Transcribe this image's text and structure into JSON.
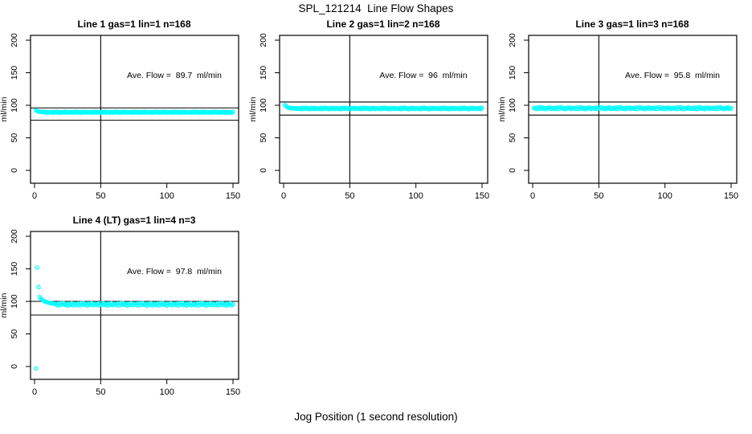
{
  "chart_data": {
    "type": "scatter",
    "title": "SPL_121214  Line Flow Shapes",
    "xlabel": "Jog Position (1 second resolution)",
    "ylabel": "ml/min",
    "xlim": [
      -6,
      156
    ],
    "ylim": [
      -12,
      212
    ],
    "xticks": [
      0,
      50,
      100,
      150
    ],
    "yticks": [
      0,
      50,
      100,
      150,
      200
    ],
    "grid": false,
    "vline_x": 50,
    "marker": {
      "shape": "open-circle",
      "color": "#00FFFF",
      "radius": 2.1,
      "stroke_width": 1.3
    },
    "line_color": "#000000",
    "plots": [
      {
        "title": "Line 1 gas=1 lin=1 n=168",
        "ave_flow": 89.7,
        "ave_flow_label": "Ave. Flow =  89.7  ml/min",
        "n": 168,
        "hlines": [
          96,
          77
        ],
        "extra_points": [],
        "series": {
          "x0": 1,
          "dx": 1,
          "y": [
            92.3,
            91.2,
            90.4,
            90.0,
            89.8,
            89.6,
            90.1,
            88.9,
            89.7,
            88.6,
            89.3,
            88.7,
            89.7,
            88.4,
            90.0,
            89.1,
            90.2,
            88.8,
            89.5,
            88.3,
            89.8,
            89.0,
            90.1,
            88.6,
            89.6,
            89.3,
            88.7,
            89.7,
            88.4,
            90.0,
            89.1,
            90.2,
            88.8,
            89.5,
            88.3,
            89.8,
            89.0,
            90.1,
            88.6,
            89.6,
            89.3,
            88.7,
            89.7,
            88.4,
            90.0,
            89.1,
            90.2,
            88.8,
            89.5,
            88.3,
            89.8,
            89.0,
            90.1,
            88.6,
            89.6,
            89.3,
            88.7,
            89.7,
            88.4,
            90.0,
            89.1,
            90.2,
            88.8,
            89.5,
            88.3,
            89.8,
            89.0,
            90.1,
            88.6,
            89.6,
            89.3,
            88.7,
            89.7,
            88.4,
            90.0,
            89.1,
            90.2,
            88.8,
            89.5,
            88.3,
            89.8,
            89.0,
            90.1,
            88.6,
            89.6,
            89.3,
            88.7,
            89.7,
            88.4,
            90.0,
            89.1,
            90.2,
            88.8,
            89.5,
            88.3,
            89.8,
            89.0,
            90.1,
            88.6,
            89.6,
            89.3,
            88.7,
            89.7,
            88.4,
            90.0,
            89.1,
            90.2,
            88.8,
            89.5,
            88.3,
            89.8,
            89.0,
            90.1,
            88.6,
            89.6,
            89.3,
            88.7,
            89.7,
            88.4,
            90.0,
            89.1,
            90.2,
            88.8,
            89.5,
            88.3,
            89.8,
            89.0,
            90.1,
            88.6,
            89.6,
            89.3,
            88.7,
            89.7,
            88.4,
            90.0,
            89.1,
            90.2,
            88.8,
            89.5,
            88.3,
            89.8,
            89.0,
            90.1,
            88.6,
            89.6,
            89.3,
            88.7,
            89.7,
            88.4,
            90.0
          ]
        }
      },
      {
        "title": "Line 2 gas=1 lin=2 n=168",
        "ave_flow": 96,
        "ave_flow_label": "Ave. Flow =  96  ml/min",
        "n": 168,
        "hlines": [
          105,
          85
        ],
        "extra_points": [],
        "series": {
          "x0": 1,
          "dx": 1,
          "y": [
            100.2,
            98.4,
            97.1,
            96.3,
            95.8,
            95.4,
            96.0,
            94.8,
            95.6,
            94.5,
            95.2,
            94.4,
            95.8,
            94.1,
            96.1,
            94.9,
            96.3,
            94.6,
            95.4,
            93.9,
            95.9,
            94.7,
            96.0,
            94.3,
            95.5,
            95.2,
            94.4,
            95.8,
            94.1,
            96.1,
            94.9,
            96.3,
            94.6,
            95.4,
            93.9,
            95.9,
            94.7,
            96.0,
            94.3,
            95.5,
            95.2,
            94.4,
            95.8,
            94.1,
            96.1,
            94.9,
            96.3,
            94.6,
            95.4,
            93.9,
            95.9,
            94.7,
            96.0,
            94.3,
            95.5,
            95.2,
            94.4,
            95.8,
            94.1,
            96.1,
            94.9,
            96.3,
            94.6,
            95.4,
            93.9,
            95.9,
            94.7,
            96.0,
            94.3,
            95.5,
            95.2,
            94.4,
            95.8,
            94.1,
            96.1,
            94.9,
            96.3,
            94.6,
            95.4,
            93.9,
            95.9,
            94.7,
            96.0,
            94.3,
            95.5,
            95.2,
            94.4,
            95.8,
            94.1,
            96.1,
            94.9,
            96.3,
            94.6,
            95.4,
            93.9,
            95.9,
            94.7,
            96.0,
            94.3,
            95.5,
            95.2,
            94.4,
            95.8,
            94.1,
            96.1,
            94.9,
            96.3,
            94.6,
            95.4,
            93.9,
            95.9,
            94.7,
            96.0,
            94.3,
            95.5,
            95.2,
            94.4,
            95.8,
            94.1,
            96.1,
            94.9,
            96.3,
            94.6,
            95.4,
            93.9,
            95.9,
            94.7,
            96.0,
            94.3,
            95.5,
            95.2,
            94.4,
            95.8,
            94.1,
            96.1,
            94.9,
            96.3,
            94.6,
            95.4,
            93.9,
            95.9,
            94.7,
            96.0,
            94.3,
            95.5,
            95.2,
            94.4,
            95.8,
            94.1,
            96.1
          ]
        }
      },
      {
        "title": "Line 3 gas=1 lin=3 n=168",
        "ave_flow": 95.8,
        "ave_flow_label": "Ave. Flow =  95.8  ml/min",
        "n": 168,
        "hlines": [
          105,
          85
        ],
        "extra_points": [],
        "series": {
          "x0": 1,
          "dx": 1,
          "y": [
            95.9,
            94.6,
            96.4,
            94.2,
            96.8,
            95.1,
            96.9,
            94.9,
            95.7,
            94.0,
            96.2,
            95.3,
            96.6,
            94.4,
            95.5,
            95.9,
            94.6,
            96.4,
            94.2,
            96.8,
            95.1,
            96.9,
            94.9,
            95.7,
            94.0,
            96.2,
            95.3,
            96.6,
            94.4,
            95.5,
            95.9,
            94.6,
            96.4,
            94.2,
            96.8,
            95.1,
            96.9,
            94.9,
            95.7,
            94.0,
            96.2,
            95.3,
            96.6,
            94.4,
            95.5,
            95.9,
            94.6,
            96.4,
            94.2,
            96.8,
            95.1,
            96.9,
            94.9,
            95.7,
            94.0,
            96.2,
            95.3,
            96.6,
            94.4,
            95.5,
            95.9,
            94.6,
            96.4,
            94.2,
            96.8,
            95.1,
            96.9,
            94.9,
            95.7,
            94.0,
            96.2,
            95.3,
            96.6,
            94.4,
            95.5,
            95.9,
            94.6,
            96.4,
            94.2,
            96.8,
            95.1,
            96.9,
            94.9,
            95.7,
            94.0,
            96.2,
            95.3,
            96.6,
            94.4,
            95.5,
            95.9,
            94.6,
            96.4,
            94.2,
            96.8,
            95.1,
            96.9,
            94.9,
            95.7,
            94.0,
            96.2,
            95.3,
            96.6,
            94.4,
            95.5,
            95.9,
            94.6,
            96.4,
            94.2,
            96.8,
            95.1,
            96.9,
            94.9,
            95.7,
            94.0,
            96.2,
            95.3,
            96.6,
            94.4,
            95.5,
            95.9,
            94.6,
            96.4,
            94.2,
            96.8,
            95.1,
            96.9,
            94.9,
            95.7,
            94.0,
            96.2,
            95.3,
            96.6,
            94.4,
            95.5,
            95.9,
            94.6,
            96.4,
            94.2,
            96.8,
            95.1,
            96.9,
            94.9,
            95.7,
            94.0,
            96.2,
            95.3,
            96.6,
            94.4,
            95.5
          ]
        }
      },
      {
        "title": "Line 4 (LT) gas=1 lin=4 n=3",
        "ave_flow": 97.8,
        "ave_flow_label": "Ave. Flow =  97.8  ml/min",
        "n": 3,
        "hlines": [
          100,
          79
        ],
        "extra_points": [
          [
            1,
            -3
          ],
          [
            2,
            152
          ],
          [
            3,
            122
          ]
        ],
        "series": {
          "x0": 4,
          "dx": 1,
          "y": [
            106.5,
            104.0,
            102.2,
            100.8,
            99.8,
            99.0,
            98.4,
            97.9,
            97.4,
            97.0,
            96.7,
            96.4,
            96.1,
            94.3,
            96.6,
            93.8,
            97.0,
            95.2,
            97.2,
            94.7,
            95.8,
            93.5,
            96.4,
            94.9,
            97.1,
            94.0,
            95.6,
            96.1,
            94.3,
            96.6,
            93.8,
            97.0,
            95.2,
            97.2,
            94.7,
            95.8,
            93.5,
            96.4,
            94.9,
            97.1,
            94.0,
            95.6,
            96.1,
            94.3,
            96.6,
            93.8,
            97.0,
            95.2,
            97.2,
            94.7,
            95.8,
            93.5,
            96.4,
            94.9,
            97.1,
            94.0,
            95.6,
            96.1,
            94.3,
            96.6,
            93.8,
            97.0,
            95.2,
            97.2,
            94.7,
            95.8,
            93.5,
            96.4,
            94.9,
            97.1,
            94.0,
            95.6,
            96.1,
            94.3,
            96.6,
            93.8,
            97.0,
            95.2,
            97.2,
            94.7,
            95.8,
            93.5,
            96.4,
            94.9,
            97.1,
            94.0,
            95.6,
            96.1,
            94.3,
            96.6,
            93.8,
            97.0,
            95.2,
            97.2,
            94.7,
            95.8,
            93.5,
            96.4,
            94.9,
            97.1,
            94.0,
            95.6,
            96.1,
            94.3,
            96.6,
            93.8,
            97.0,
            95.2,
            97.2,
            94.7,
            95.8,
            93.5,
            96.4,
            94.9,
            97.1,
            94.0,
            95.6,
            96.1,
            94.3,
            96.6,
            93.8,
            97.0,
            95.2,
            97.2,
            94.7,
            95.8,
            93.5,
            96.4,
            94.9,
            97.1,
            94.0,
            95.6,
            96.1,
            94.3,
            96.6,
            93.8,
            97.0,
            95.2,
            97.2,
            94.7,
            95.8,
            93.5,
            96.4,
            94.9,
            97.1,
            94.0,
            95.6
          ]
        }
      }
    ]
  }
}
